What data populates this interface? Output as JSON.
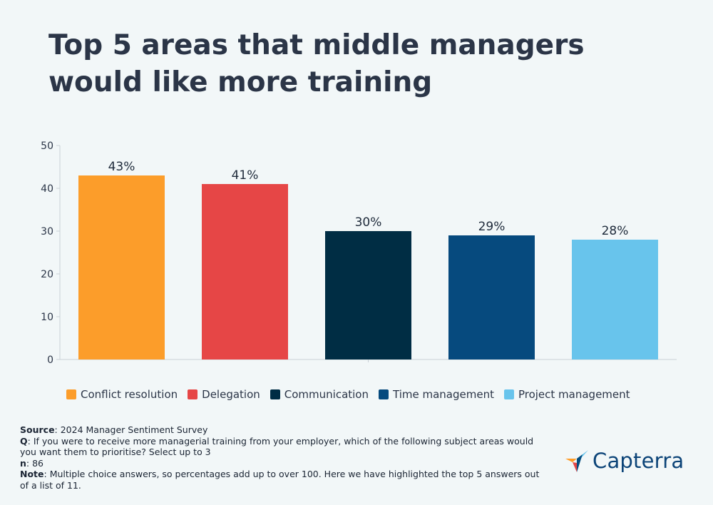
{
  "title": "Top 5 areas that middle managers would like more training",
  "chart_data": {
    "type": "bar",
    "categories": [
      "Conflict resolution",
      "Delegation",
      "Communication",
      "Time management",
      "Project management"
    ],
    "values": [
      43,
      41,
      30,
      29,
      28
    ],
    "data_labels": [
      "43%",
      "41%",
      "30%",
      "29%",
      "28%"
    ],
    "colors": [
      "#fc9d2a",
      "#e64646",
      "#002d44",
      "#064a7e",
      "#68c4ec"
    ],
    "yticks": [
      "0",
      "10",
      "20",
      "30",
      "40",
      "50"
    ],
    "ylim": [
      0,
      50
    ],
    "grid": false,
    "legend_position": "bottom"
  },
  "legend": [
    {
      "label": "Conflict resolution",
      "color": "#fc9d2a"
    },
    {
      "label": "Delegation",
      "color": "#e64646"
    },
    {
      "label": "Communication",
      "color": "#002d44"
    },
    {
      "label": "Time management",
      "color": "#064a7e"
    },
    {
      "label": "Project management",
      "color": "#68c4ec"
    }
  ],
  "footnotes": {
    "source_label": "Source",
    "source_text": ": 2024 Manager Sentiment Survey",
    "q_label": "Q",
    "q_text": ": If you were to receive more managerial training from your employer, which of the following subject areas would you want them to prioritise? Select up to 3",
    "n_label": "n",
    "n_text": ": 86",
    "note_label": "Note",
    "note_text": ": Multiple choice answers, so percentages add up to over 100. Here we have highlighted the top 5 answers out of a list of 11."
  },
  "logo": {
    "text": "Capterra",
    "colors": [
      "#ff9d28",
      "#68c5ed",
      "#044d80",
      "#e54747"
    ]
  }
}
